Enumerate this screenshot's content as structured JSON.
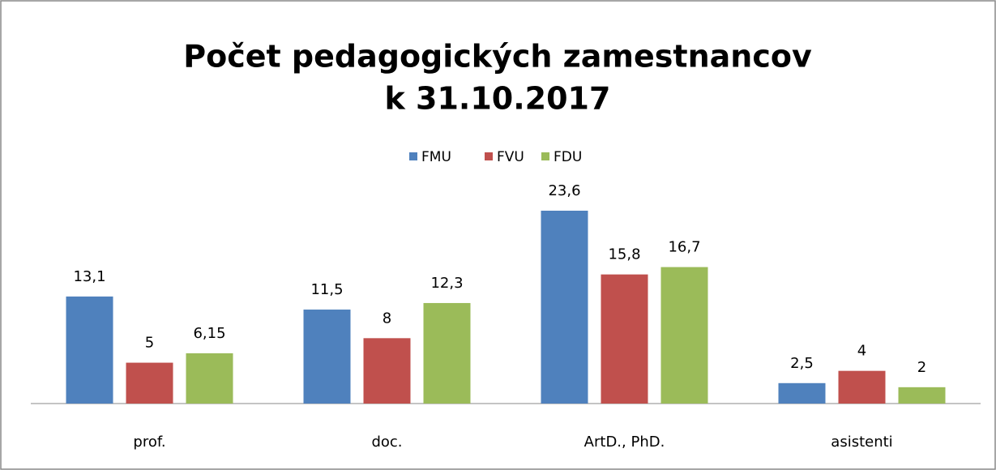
{
  "chart_data": {
    "type": "bar",
    "title": [
      "Počet pedagogických zamestnancov",
      "k 31.10.2017"
    ],
    "categories": [
      "prof.",
      "doc.",
      "ArtD., PhD.",
      "asistenti"
    ],
    "series": [
      {
        "name": "FMU",
        "color": "#4f81bd",
        "values": [
          13.1,
          11.5,
          23.6,
          2.5
        ],
        "value_labels": [
          "13,1",
          "11,5",
          "23,6",
          "2,5"
        ]
      },
      {
        "name": "FVU",
        "color": "#c0504d",
        "values": [
          5,
          8,
          15.8,
          4
        ],
        "value_labels": [
          "5",
          "8",
          "15,8",
          "4"
        ]
      },
      {
        "name": "FDU",
        "color": "#9bbb59",
        "values": [
          6.15,
          12.3,
          16.7,
          2
        ],
        "value_labels": [
          "6,15",
          "12,3",
          "16,7",
          "2"
        ]
      }
    ],
    "legend": "top"
  }
}
